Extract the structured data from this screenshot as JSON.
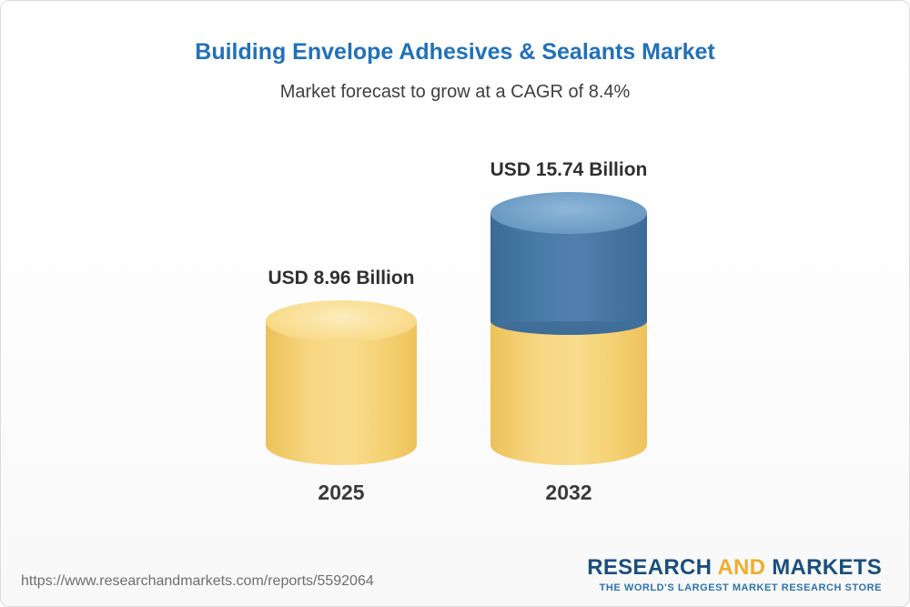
{
  "header": {
    "title": "Building Envelope Adhesives & Sealants Market",
    "subtitle": "Market forecast to grow at a CAGR of 8.4%"
  },
  "chart_data": {
    "type": "bar",
    "title": "Building Envelope Adhesives & Sealants Market",
    "subtitle": "Market forecast to grow at a CAGR of 8.4%",
    "cagr_percent": 8.4,
    "unit": "USD Billion",
    "categories": [
      "2025",
      "2032"
    ],
    "values": [
      8.96,
      15.74
    ],
    "value_labels": [
      "USD 8.96 Billion",
      "USD 15.74 Billion"
    ],
    "series_note": "2032 bar shows 2025 base in yellow plus forecast growth in blue",
    "colors": {
      "base_segment": "#f5d075",
      "growth_segment": "#44779f",
      "title_text": "#2171b8"
    },
    "legend_position": "none",
    "grid": false
  },
  "footer": {
    "url": "https://www.researchandmarkets.com/reports/5592064",
    "logo": {
      "word1": "RESEARCH",
      "word2": "AND",
      "word3": "MARKETS",
      "tagline": "THE WORLD'S LARGEST MARKET RESEARCH STORE",
      "navy": "#1a4f7d",
      "gold": "#f0ad2d"
    }
  }
}
